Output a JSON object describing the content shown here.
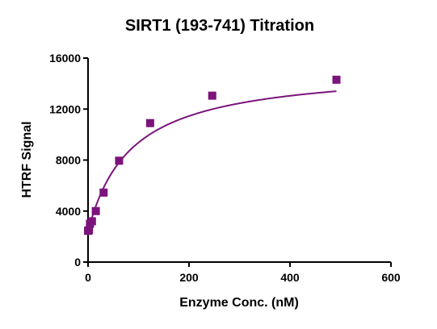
{
  "chart_data": {
    "type": "scatter",
    "title": "SIRT1 (193-741) Titration",
    "xlabel": "Enzyme Conc. (nM)",
    "ylabel": "HTRF Signal",
    "xlim": [
      0,
      600
    ],
    "ylim": [
      0,
      16000
    ],
    "x_ticks": [
      0,
      200,
      400,
      600
    ],
    "y_ticks": [
      0,
      4000,
      8000,
      12000,
      16000
    ],
    "x_tick_labels": [
      "0",
      "200",
      "400",
      "600"
    ],
    "y_tick_labels": [
      "0",
      "4000",
      "8000",
      "12000",
      "16000"
    ],
    "grid": false,
    "legend": "none",
    "series": [
      {
        "color": "#7B147B",
        "marker": "square",
        "x": [
          0,
          1.9,
          3.8,
          7.7,
          15.4,
          30.8,
          61.5,
          123,
          246,
          492
        ],
        "y": [
          2450,
          2500,
          3000,
          3200,
          4000,
          5450,
          7950,
          10900,
          13050,
          14300
        ]
      }
    ],
    "fit_curve": {
      "color": "#7B147B",
      "model": "one-site hyperbolic",
      "Bmax": 12900,
      "Kd": 85,
      "baseline": 2400
    }
  }
}
